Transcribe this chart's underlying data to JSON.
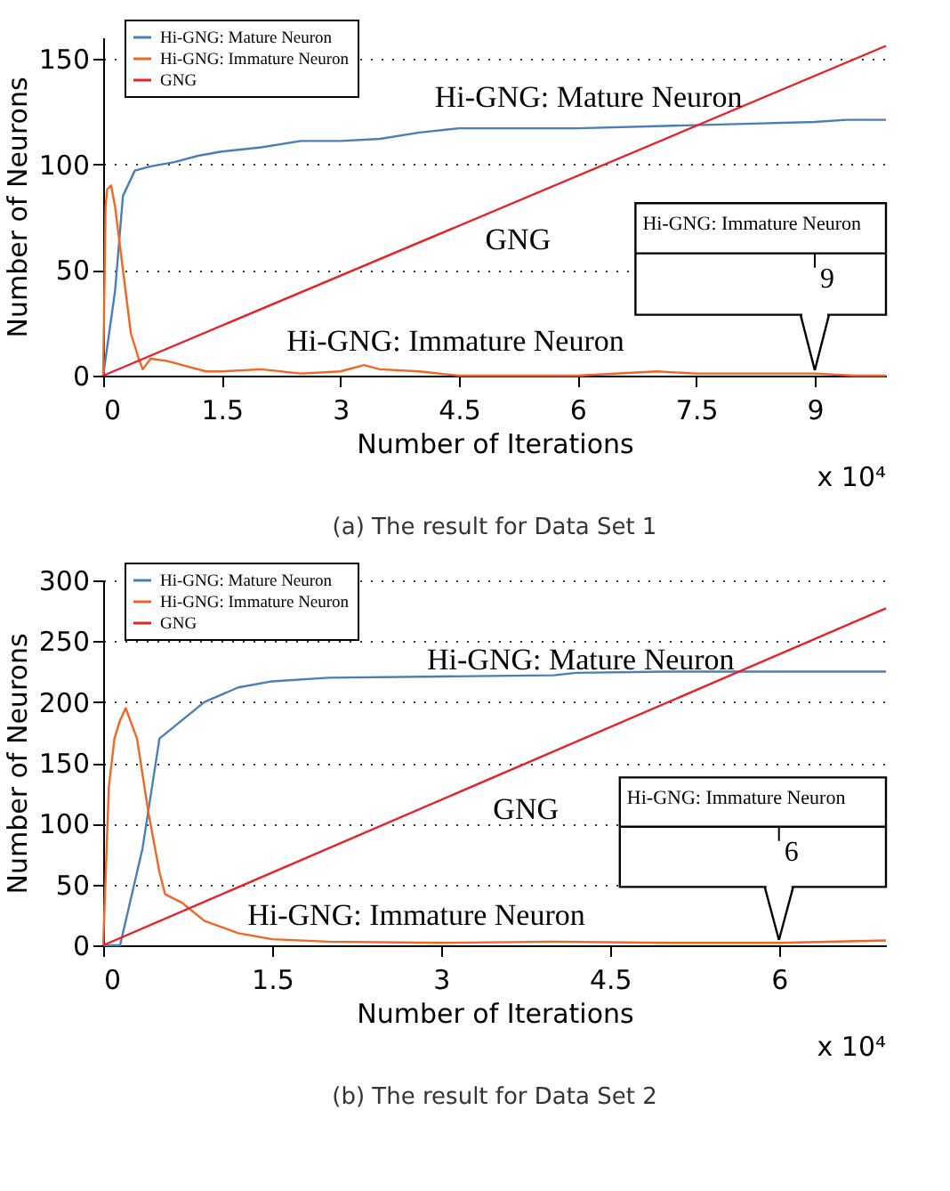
{
  "chart_data": [
    {
      "type": "line",
      "title": "(a)  The result for Data Set 1",
      "xlabel": "Number of Iterations",
      "ylabel": "Number of Neurons",
      "xlim": [
        0,
        9.9
      ],
      "xticks": [
        0,
        1.5,
        3,
        4.5,
        6,
        7.5,
        9
      ],
      "ylim": [
        0,
        160
      ],
      "yticks": [
        0,
        50,
        100,
        150
      ],
      "grid": "y",
      "legend": "top left",
      "line_style": "solid",
      "marker": "none",
      "series": [
        {
          "name": "Hi-GNG: Mature Neuron",
          "color": "#4a7fb5",
          "x": [
            0,
            0.15,
            0.25,
            0.4,
            0.6,
            0.9,
            1.2,
            1.5,
            2,
            2.5,
            3,
            3.5,
            4,
            4.5,
            5,
            6,
            7,
            8,
            9,
            9.4,
            9.9
          ],
          "values": [
            0,
            40,
            85,
            97,
            99,
            101,
            104,
            106,
            108,
            111,
            111,
            112,
            115,
            117,
            117,
            117,
            118,
            119,
            120,
            121,
            121
          ]
        },
        {
          "name": "Hi-GNG: Immature Neuron",
          "color": "#f26522",
          "x": [
            0,
            0.03,
            0.05,
            0.1,
            0.15,
            0.25,
            0.35,
            0.45,
            0.5,
            0.6,
            0.8,
            1,
            1.3,
            1.5,
            2,
            2.5,
            3,
            3.3,
            3.5,
            4,
            4.5,
            6,
            7,
            7.5,
            9,
            9.5,
            9.9
          ],
          "values": [
            0,
            80,
            88,
            90,
            80,
            50,
            20,
            8,
            3,
            8,
            7,
            5,
            2,
            2,
            3,
            1,
            2,
            5,
            3,
            2,
            0,
            0,
            2,
            1,
            1,
            0,
            0
          ]
        },
        {
          "name": "GNG",
          "color": "#e8202a",
          "x": [
            0,
            9.9
          ],
          "values": [
            0,
            156
          ]
        }
      ],
      "annotations": [
        "Hi-GNG: Mature Neuron",
        "GNG",
        "Hi-GNG: Immature Neuron",
        "Hi-GNG: Immature Neuron",
        {
          "text": "9",
          "x": 9,
          "y": 0
        },
        "x 10⁴"
      ]
    },
    {
      "type": "line",
      "title": "(b)  The result for Data Set 2",
      "xlabel": "Number of Iterations",
      "ylabel": "Number of Neurons",
      "xlim": [
        0,
        6.95
      ],
      "xticks": [
        0,
        1.5,
        3,
        4.5,
        6
      ],
      "ylim": [
        0,
        300
      ],
      "yticks": [
        0,
        50,
        100,
        150,
        200,
        250,
        300
      ],
      "grid": "y",
      "legend": "top left",
      "line_style": "solid",
      "marker": "none",
      "series": [
        {
          "name": "Hi-GNG: Mature Neuron",
          "color": "#4a7fb5",
          "x": [
            0,
            0.15,
            0.35,
            0.5,
            0.7,
            0.9,
            1.2,
            1.5,
            2,
            3,
            4,
            4.2,
            5,
            6.95
          ],
          "values": [
            0,
            0,
            80,
            170,
            185,
            200,
            212,
            217,
            220,
            221,
            222,
            224,
            225,
            225
          ]
        },
        {
          "name": "Hi-GNG: Immature Neuron",
          "color": "#f26522",
          "x": [
            0,
            0.05,
            0.1,
            0.15,
            0.2,
            0.3,
            0.4,
            0.5,
            0.55,
            0.7,
            0.9,
            1.2,
            1.5,
            2,
            3,
            4,
            5,
            6,
            6.95
          ],
          "values": [
            0,
            130,
            170,
            185,
            195,
            170,
            110,
            60,
            42,
            35,
            20,
            10,
            5,
            3,
            2,
            3,
            2,
            2,
            4
          ]
        },
        {
          "name": "GNG",
          "color": "#e8202a",
          "x": [
            0,
            6.95
          ],
          "values": [
            0,
            277
          ]
        }
      ],
      "annotations": [
        "Hi-GNG: Mature Neuron",
        "GNG",
        "Hi-GNG: Immature Neuron",
        "Hi-GNG: Immature Neuron",
        {
          "text": "6",
          "x": 6,
          "y": 0
        },
        "x 10⁴"
      ]
    }
  ]
}
